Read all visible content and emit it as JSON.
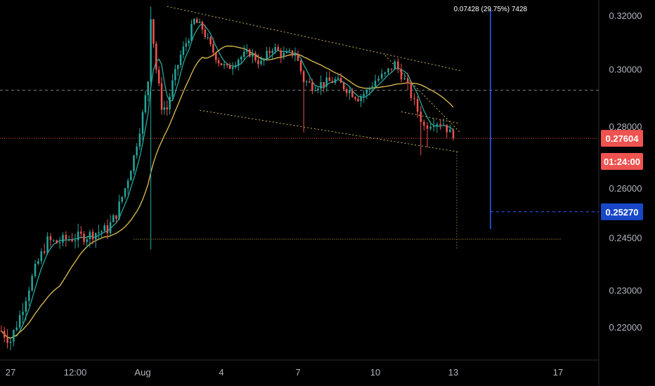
{
  "chart_data": {
    "type": "candlestick",
    "symbol": "",
    "y_ticks": [
      "0.32000",
      "0.30000",
      "0.28000",
      "0.26000",
      "0.24500",
      "0.23000",
      "0.22000"
    ],
    "x_ticks": [
      "27",
      "12:00",
      "Aug",
      "4",
      "7",
      "10",
      "13",
      "17"
    ],
    "last_price": "0.27604",
    "countdown": "01:24:00",
    "target_price": "0.25270",
    "measure_label": "0.07428 (29.75%) 7428",
    "colors": {
      "background": "#000000",
      "up": "#26a69a",
      "down": "#ef5350",
      "ma_fast": "#26a69a",
      "ma_slow": "#e0c050",
      "trendline": "#c9b458",
      "last_price_line": "#ef5350",
      "target_line": "#2962ff",
      "target_badge": "#1848c8",
      "crosshair": "#787b86",
      "axis_text": "#b2b5be"
    },
    "price_range": [
      0.2145,
      0.3235
    ],
    "time_range": [
      0,
      197
    ],
    "x_tick_times": [
      3,
      24,
      47,
      76,
      103,
      130,
      154,
      185
    ],
    "crosshair_price": 0.2925,
    "annotations": {
      "channel_upper": [
        [
          56,
          0.3235
        ],
        [
          156,
          0.2995
        ]
      ],
      "channel_lower": [
        [
          68,
          0.2855
        ],
        [
          156,
          0.2715
        ]
      ],
      "wedge_upper": [
        [
          133,
          0.305
        ],
        [
          156,
          0.278
        ]
      ],
      "wedge_lower_stub": [
        [
          138,
          0.285
        ],
        [
          156,
          0.281
        ]
      ],
      "support_line": [
        [
          44,
          0.2445
        ],
        [
          186,
          0.2445
        ]
      ],
      "projection_line": [
        [
          155,
          0.2715
        ],
        [
          155,
          0.2415
        ]
      ],
      "measure_line": [
        [
          165,
          0.3222
        ],
        [
          165,
          0.2475
        ]
      ],
      "target_line_start": 165
    }
  }
}
